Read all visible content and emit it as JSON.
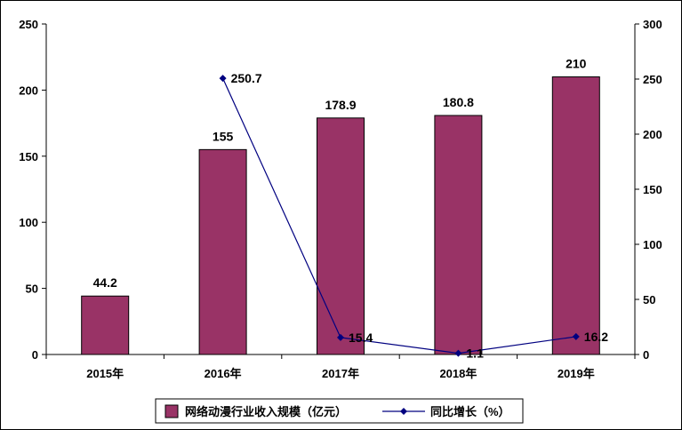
{
  "chart_data": {
    "type": "bar",
    "categories": [
      "2015年",
      "2016年",
      "2017年",
      "2018年",
      "2019年"
    ],
    "series": [
      {
        "name": "网络动漫行业收入规模（亿元）",
        "type": "bar",
        "axis": "left",
        "values": [
          44.2,
          155,
          178.9,
          180.8,
          210
        ],
        "labels": [
          "44.2",
          "155",
          "178.9",
          "180.8",
          "210"
        ]
      },
      {
        "name": "同比增长（%）",
        "type": "line",
        "axis": "right",
        "values": [
          null,
          250.7,
          15.4,
          1.1,
          16.2
        ],
        "labels": [
          "",
          "250.7",
          "15.4",
          "1.1",
          "16.2"
        ]
      }
    ],
    "left_axis": {
      "min": 0,
      "max": 250,
      "ticks": [
        0,
        50,
        100,
        150,
        200,
        250
      ]
    },
    "right_axis": {
      "min": 0,
      "max": 300,
      "ticks": [
        0,
        50,
        100,
        150,
        200,
        250,
        300
      ]
    },
    "grid": false,
    "legend_position": "bottom",
    "colors": {
      "bar": "#993366",
      "line": "#000080"
    }
  }
}
